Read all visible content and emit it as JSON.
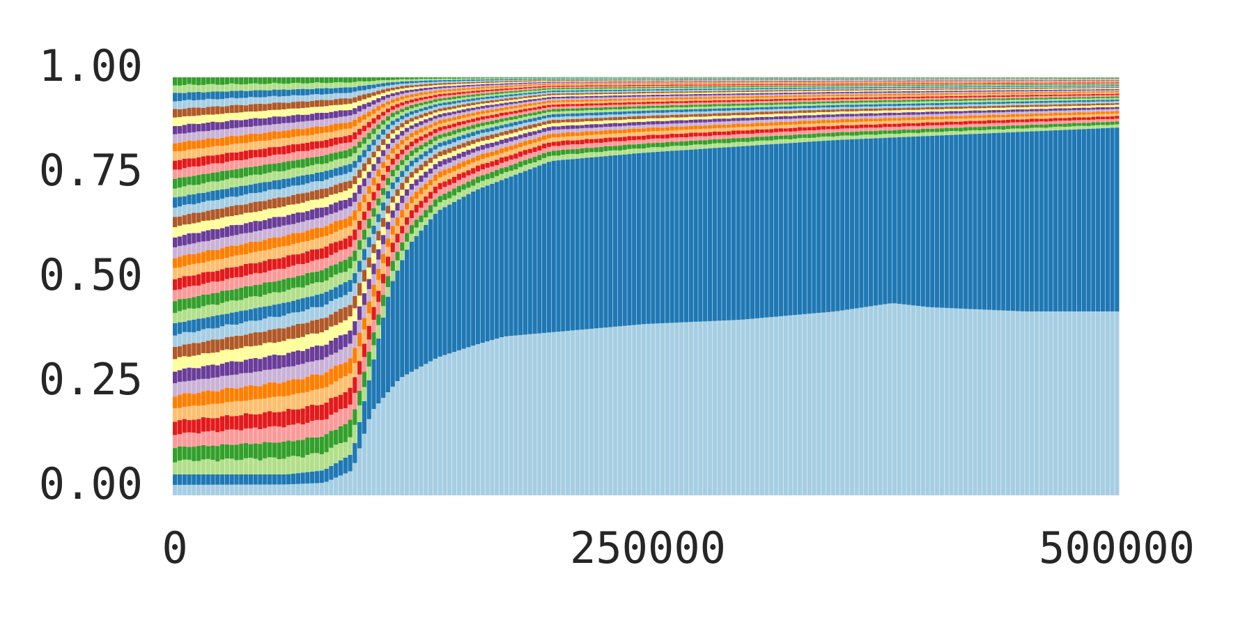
{
  "chart_data": {
    "type": "bar",
    "stacked": true,
    "normalized": true,
    "title": "",
    "xlabel": "",
    "ylabel": "",
    "xlim": [
      0,
      500000
    ],
    "ylim": [
      0,
      1
    ],
    "x_ticks": [
      "0",
      "250000",
      "500000"
    ],
    "y_ticks": [
      "0.00",
      "0.25",
      "0.50",
      "0.75",
      "1.00"
    ],
    "grid": false,
    "legend": "none",
    "palette": [
      "#a6cee3",
      "#1f78b4",
      "#b2df8a",
      "#33a02c",
      "#fb9a99",
      "#e31a1c",
      "#fdbf6f",
      "#ff7f00",
      "#cab2d6",
      "#6a3d9a",
      "#ffff99",
      "#b15928"
    ],
    "num_categories": 40,
    "num_bars": 200,
    "bottom_band_fraction_profile": {
      "x": [
        0,
        60000,
        80000,
        95000,
        105000,
        120000,
        140000,
        160000,
        175000,
        200000,
        250000,
        300000,
        350000,
        380000,
        400000,
        450000,
        500000
      ],
      "y": [
        0.025,
        0.026,
        0.03,
        0.06,
        0.2,
        0.28,
        0.33,
        0.36,
        0.38,
        0.39,
        0.41,
        0.42,
        0.44,
        0.46,
        0.45,
        0.44,
        0.44
      ]
    },
    "second_band_top_profile": {
      "x": [
        0,
        60000,
        80000,
        95000,
        105000,
        115000,
        125000,
        140000,
        160000,
        200000,
        250000,
        300000,
        350000,
        400000,
        450000,
        500000
      ],
      "y": [
        0.05,
        0.05,
        0.06,
        0.1,
        0.3,
        0.5,
        0.6,
        0.68,
        0.73,
        0.8,
        0.82,
        0.835,
        0.85,
        0.86,
        0.87,
        0.88
      ]
    }
  }
}
